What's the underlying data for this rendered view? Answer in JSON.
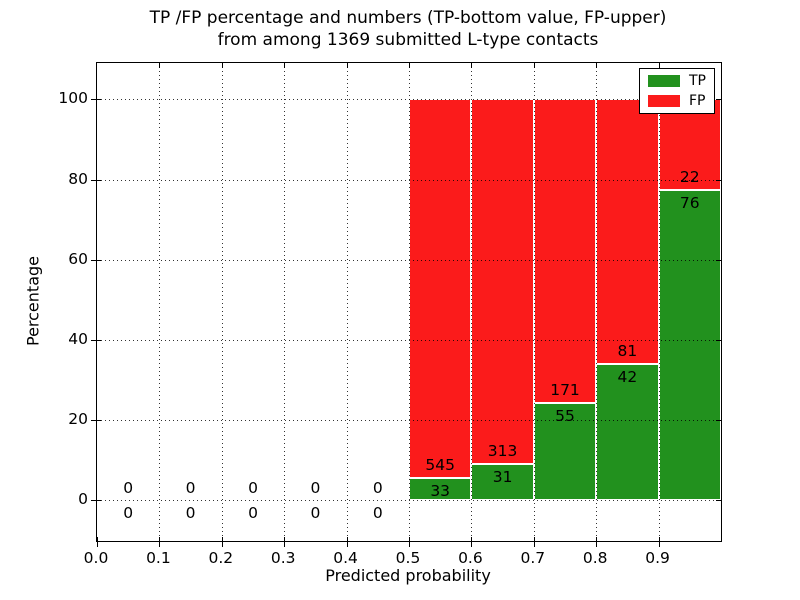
{
  "figure": {
    "title_line1": "TP /FP percentage and numbers (TP-bottom value, FP-upper)",
    "title_line2": "from among 1369 submitted L-type contacts",
    "xlabel": "Predicted probability",
    "ylabel": "Percentage"
  },
  "legend": {
    "position": "upper right",
    "items": [
      {
        "label": "TP",
        "color": "#22911e"
      },
      {
        "label": "FP",
        "color": "#fb1b1b"
      }
    ]
  },
  "chart_data": {
    "type": "bar",
    "stacked": true,
    "normalized_to_percent": true,
    "title": "TP /FP percentage and numbers (TP-bottom value, FP-upper) from among 1369 submitted L-type contacts",
    "xlabel": "Predicted probability",
    "ylabel": "Percentage",
    "total_submitted_contacts": 1369,
    "bin_starts": [
      0.0,
      0.1,
      0.2,
      0.3,
      0.4,
      0.5,
      0.6,
      0.7,
      0.8,
      0.9
    ],
    "bin_width": 0.1,
    "series": [
      {
        "name": "TP",
        "color": "#22911e",
        "counts": [
          0,
          0,
          0,
          0,
          0,
          33,
          31,
          55,
          42,
          76
        ]
      },
      {
        "name": "FP",
        "color": "#fb1b1b",
        "counts": [
          0,
          0,
          0,
          0,
          0,
          545,
          313,
          171,
          81,
          22
        ]
      }
    ],
    "tp_percent_of_bin": [
      0,
      0,
      0,
      0,
      0,
      5.7,
      9.0,
      24.3,
      34.1,
      77.6
    ],
    "xlim": [
      0.0,
      1.0
    ],
    "ylim": [
      -10.1,
      109.1
    ],
    "xtick_labels": [
      "0.0",
      "0.1",
      "0.2",
      "0.3",
      "0.4",
      "0.5",
      "0.6",
      "0.7",
      "0.8",
      "0.9"
    ],
    "ytick_values": [
      0,
      20,
      40,
      60,
      80,
      100
    ],
    "grid": "dotted",
    "legend_position": "upper right"
  }
}
